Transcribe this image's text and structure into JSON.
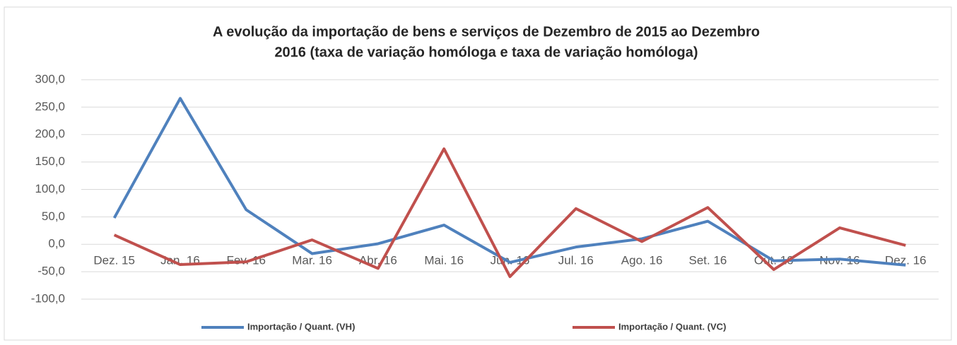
{
  "chart_data": {
    "type": "line",
    "title": [
      "A evolução da importação de bens e serviços de Dezembro de 2015 ao Dezembro",
      "2016 (taxa de variação homóloga e taxa de variação homóloga)"
    ],
    "categories": [
      "Dez. 15",
      "Jan. 16",
      "Fev. 16",
      "Mar. 16",
      "Abr. 16",
      "Mai. 16",
      "Jun. 16",
      "Jul. 16",
      "Ago. 16",
      "Set. 16",
      "Out. 16",
      "Nov. 16",
      "Dez. 16"
    ],
    "series": [
      {
        "name": "Importação / Quant. (VH)",
        "color": "#4f81bd",
        "values": [
          48,
          266,
          63,
          -17,
          1,
          35,
          -33,
          -5,
          10,
          42,
          -30,
          -27,
          -38
        ]
      },
      {
        "name": "Importação / Quant. (VC)",
        "color": "#c0504d",
        "values": [
          17,
          -37,
          -32,
          8,
          -44,
          174,
          -59,
          65,
          5,
          67,
          -46,
          30,
          -2
        ]
      }
    ],
    "ylim": [
      -100,
      300
    ],
    "yticks": [
      {
        "value": -100,
        "label": "-100,0"
      },
      {
        "value": -50,
        "label": "-50,0"
      },
      {
        "value": 0,
        "label": "0,0"
      },
      {
        "value": 50,
        "label": "50,0"
      },
      {
        "value": 100,
        "label": "100,0"
      },
      {
        "value": 150,
        "label": "150,0"
      },
      {
        "value": 200,
        "label": "200,0"
      },
      {
        "value": 250,
        "label": "250,0"
      },
      {
        "value": 300,
        "label": "300,0"
      }
    ],
    "grid": true,
    "legend": "bottom"
  }
}
